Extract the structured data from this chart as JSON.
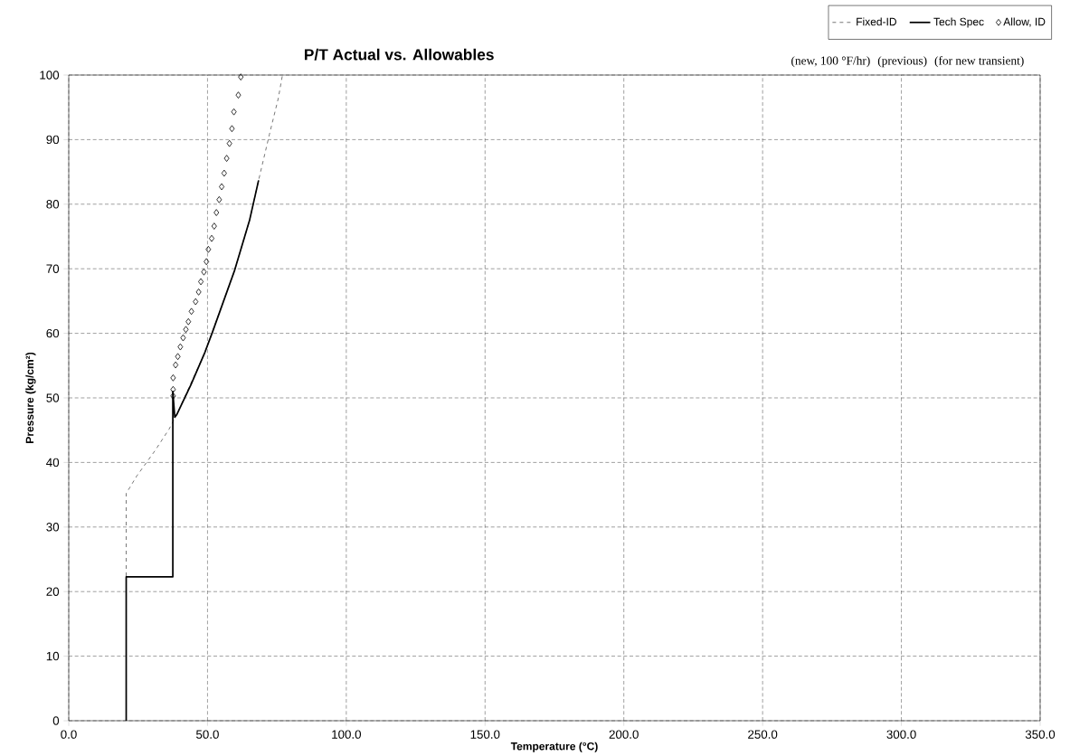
{
  "chart_data": {
    "type": "line",
    "title": "P/T Actual vs. Allowables",
    "xlabel": "Temperature (°C)",
    "ylabel": "Pressure (kg/cm²)",
    "xlim": [
      0,
      350
    ],
    "ylim": [
      0,
      100
    ],
    "xticks": [
      {
        "value": 0,
        "label": "0.0"
      },
      {
        "value": 50,
        "label": "50.0"
      },
      {
        "value": 100,
        "label": "100.0"
      },
      {
        "value": 150,
        "label": "150.0"
      },
      {
        "value": 200,
        "label": "200.0"
      },
      {
        "value": 250,
        "label": "250.0"
      },
      {
        "value": 300,
        "label": "300.0"
      },
      {
        "value": 350,
        "label": "350.0"
      }
    ],
    "yticks": [
      0,
      10,
      20,
      30,
      40,
      50,
      60,
      70,
      80,
      90,
      100
    ],
    "grid": true,
    "legend": "top right",
    "annotations": [
      "(new, 100 °F/hr)",
      "(previous)",
      "(for new transient)"
    ],
    "series": [
      {
        "name": "Fixed-ID",
        "color": "#555555",
        "line_style": "dashed",
        "x": [
          20.7,
          20.7,
          24.5,
          31.2,
          36.2,
          38.9,
          49.1,
          59.8,
          65.2,
          68.4,
          72.3,
          75.5,
          77.0
        ],
        "values": [
          0,
          35.2,
          37.9,
          41.9,
          45.2,
          47.4,
          57.1,
          69.8,
          77.6,
          83.7,
          90.8,
          96.4,
          100
        ]
      },
      {
        "name": "Tech Spec",
        "color": "#000000",
        "line_style": "solid",
        "x": [
          20.7,
          20.7,
          37.5,
          37.5,
          38.2,
          38.9,
          44.0,
          49.1,
          51.8,
          59.8,
          65.2,
          68.4
        ],
        "values": [
          0,
          22.3,
          22.3,
          51.0,
          47.0,
          47.4,
          52.0,
          57.1,
          60.2,
          69.8,
          77.6,
          83.7
        ]
      },
      {
        "name": "Allow, ID",
        "type": "scatter",
        "color": "#000000",
        "marker": "diamond",
        "x": [
          62.0,
          61.1,
          59.5,
          58.8,
          57.9,
          56.9,
          56.0,
          55.1,
          54.2,
          53.2,
          52.4,
          51.5,
          50.3,
          49.6,
          48.7,
          47.6,
          46.8,
          45.7,
          44.2,
          43.1,
          42.2,
          41.2,
          40.2,
          39.3,
          38.5,
          37.6,
          37.6,
          37.6
        ],
        "values": [
          99.7,
          96.9,
          94.3,
          91.7,
          89.4,
          87.1,
          84.8,
          82.7,
          80.7,
          78.7,
          76.6,
          74.7,
          73.0,
          71.1,
          69.5,
          68.0,
          66.4,
          64.9,
          63.4,
          61.8,
          60.6,
          59.3,
          57.9,
          56.4,
          55.1,
          53.1,
          51.3,
          50.3
        ]
      }
    ]
  }
}
